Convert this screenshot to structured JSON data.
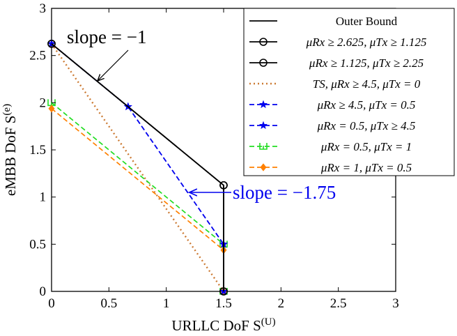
{
  "chart_data": {
    "type": "line",
    "xlabel": "URLLC DoF S(U)",
    "ylabel": "eMBB DoF S(e)",
    "xlim": [
      0,
      3
    ],
    "ylim": [
      0,
      3
    ],
    "xticks": [
      "0",
      "0.5",
      "1",
      "1.5",
      "2",
      "2.5",
      "3"
    ],
    "yticks": [
      "0",
      "0.5",
      "1",
      "1.5",
      "2",
      "2.5",
      "3"
    ],
    "grid": false,
    "legend_position": "top-right",
    "series": [
      {
        "name": "Outer Bound",
        "color": "#000000",
        "dash": "solid",
        "marker": "none",
        "x": [
          0,
          1.5,
          1.5
        ],
        "y": [
          2.625,
          1.125,
          0
        ]
      },
      {
        "name": "μRx ≥ 2.625, μTx ≥ 1.125",
        "color": "#000000",
        "dash": "solid",
        "marker": "circle",
        "x": [
          0,
          1.5,
          1.5
        ],
        "y": [
          2.625,
          1.125,
          0
        ]
      },
      {
        "name": "μRx ≥ 1.125, μTx ≥ 2.25",
        "color": "#000000",
        "dash": "solid",
        "marker": "circle",
        "x": [
          0,
          1.5,
          1.5
        ],
        "y": [
          2.625,
          1.125,
          0
        ]
      },
      {
        "name": "TS, μRx ≥ 4.5, μTx = 0",
        "color": "#cc7a33",
        "dash": "dotted",
        "marker": "none",
        "x": [
          0,
          1.5
        ],
        "y": [
          2.625,
          0
        ]
      },
      {
        "name": "μRx ≥ 4.5, μTx = 0.5",
        "color": "#0000ee",
        "dash": "dashed",
        "marker": "star",
        "x": [
          0,
          0.667,
          1.5,
          1.5
        ],
        "y": [
          2.625,
          1.958,
          0.5,
          0
        ]
      },
      {
        "name": "μRx = 0.5, μTx ≥ 4.5",
        "color": "#0000ee",
        "dash": "dashed",
        "marker": "star",
        "x": [
          0,
          0.667,
          1.5,
          1.5
        ],
        "y": [
          2.625,
          1.958,
          0.5,
          0
        ]
      },
      {
        "name": "μRx = 0.5, μTx = 1",
        "color": "#22dd22",
        "dash": "dashed",
        "marker": "tri",
        "x": [
          0,
          1.5,
          1.5
        ],
        "y": [
          2.0,
          0.5,
          0
        ]
      },
      {
        "name": "μRx = 1, μTx = 0.5",
        "color": "#ff8000",
        "dash": "dashed",
        "marker": "diamond",
        "x": [
          0,
          1.5,
          1.5
        ],
        "y": [
          1.938,
          0.438,
          0
        ]
      }
    ],
    "annotations": [
      {
        "text": "slope = −1",
        "color": "#000000",
        "arrow_to": [
          0.4,
          2.23
        ]
      },
      {
        "text": "slope = −1.75",
        "color": "#0000ee",
        "arrow_to": [
          1.2,
          1.06
        ]
      }
    ]
  }
}
